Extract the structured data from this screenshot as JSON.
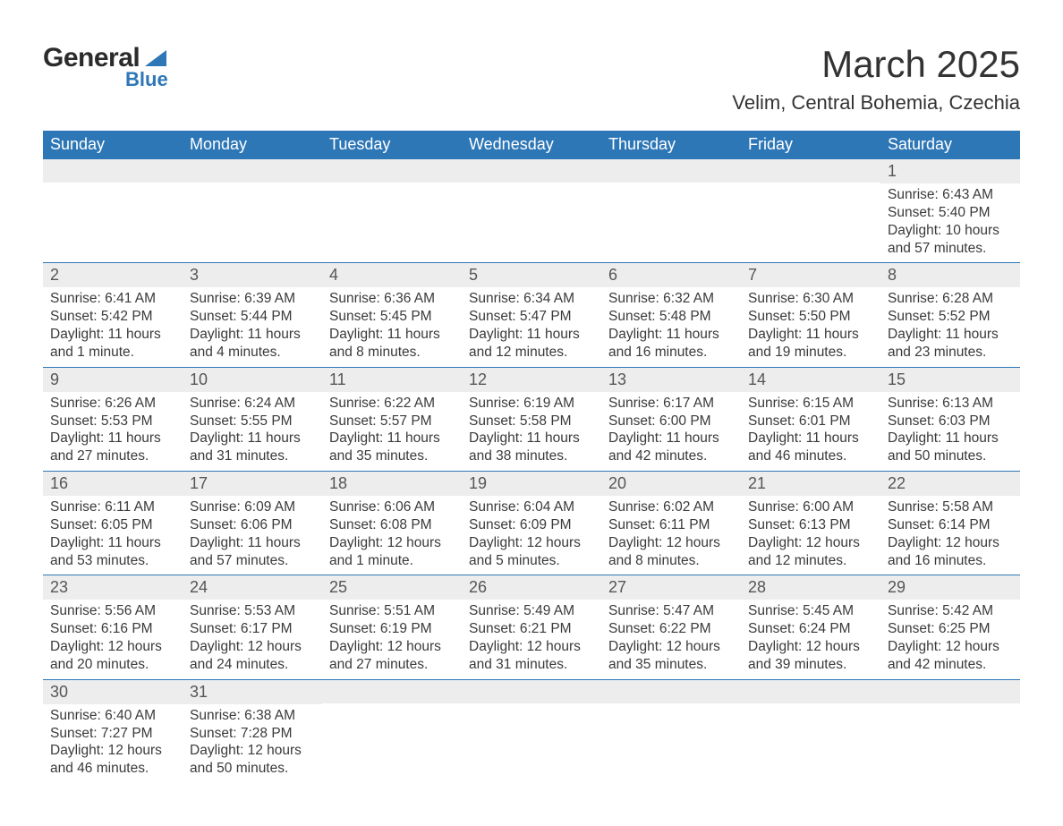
{
  "brand": {
    "top": "General",
    "bottom": "Blue",
    "tri_color": "#2e77b7"
  },
  "title": "March 2025",
  "subtitle": "Velim, Central Bohemia, Czechia",
  "colors": {
    "header_bg": "#2e77b7",
    "header_text": "#ffffff",
    "daynum_bg": "#ededed",
    "daynum_text": "#565656",
    "body_text": "#3a3a3a",
    "rule": "#2e77b7",
    "background": "#ffffff"
  },
  "typography": {
    "title_fontsize": 42,
    "subtitle_fontsize": 22,
    "header_fontsize": 18,
    "daynum_fontsize": 18,
    "body_fontsize": 15.5
  },
  "layout": {
    "columns": 7,
    "rows": 6,
    "first_weekday": "Sunday"
  },
  "weekdays": [
    "Sunday",
    "Monday",
    "Tuesday",
    "Wednesday",
    "Thursday",
    "Friday",
    "Saturday"
  ],
  "weeks": [
    [
      null,
      null,
      null,
      null,
      null,
      null,
      {
        "n": "1",
        "sunrise": "Sunrise: 6:43 AM",
        "sunset": "Sunset: 5:40 PM",
        "daylight1": "Daylight: 10 hours",
        "daylight2": "and 57 minutes."
      }
    ],
    [
      {
        "n": "2",
        "sunrise": "Sunrise: 6:41 AM",
        "sunset": "Sunset: 5:42 PM",
        "daylight1": "Daylight: 11 hours",
        "daylight2": "and 1 minute."
      },
      {
        "n": "3",
        "sunrise": "Sunrise: 6:39 AM",
        "sunset": "Sunset: 5:44 PM",
        "daylight1": "Daylight: 11 hours",
        "daylight2": "and 4 minutes."
      },
      {
        "n": "4",
        "sunrise": "Sunrise: 6:36 AM",
        "sunset": "Sunset: 5:45 PM",
        "daylight1": "Daylight: 11 hours",
        "daylight2": "and 8 minutes."
      },
      {
        "n": "5",
        "sunrise": "Sunrise: 6:34 AM",
        "sunset": "Sunset: 5:47 PM",
        "daylight1": "Daylight: 11 hours",
        "daylight2": "and 12 minutes."
      },
      {
        "n": "6",
        "sunrise": "Sunrise: 6:32 AM",
        "sunset": "Sunset: 5:48 PM",
        "daylight1": "Daylight: 11 hours",
        "daylight2": "and 16 minutes."
      },
      {
        "n": "7",
        "sunrise": "Sunrise: 6:30 AM",
        "sunset": "Sunset: 5:50 PM",
        "daylight1": "Daylight: 11 hours",
        "daylight2": "and 19 minutes."
      },
      {
        "n": "8",
        "sunrise": "Sunrise: 6:28 AM",
        "sunset": "Sunset: 5:52 PM",
        "daylight1": "Daylight: 11 hours",
        "daylight2": "and 23 minutes."
      }
    ],
    [
      {
        "n": "9",
        "sunrise": "Sunrise: 6:26 AM",
        "sunset": "Sunset: 5:53 PM",
        "daylight1": "Daylight: 11 hours",
        "daylight2": "and 27 minutes."
      },
      {
        "n": "10",
        "sunrise": "Sunrise: 6:24 AM",
        "sunset": "Sunset: 5:55 PM",
        "daylight1": "Daylight: 11 hours",
        "daylight2": "and 31 minutes."
      },
      {
        "n": "11",
        "sunrise": "Sunrise: 6:22 AM",
        "sunset": "Sunset: 5:57 PM",
        "daylight1": "Daylight: 11 hours",
        "daylight2": "and 35 minutes."
      },
      {
        "n": "12",
        "sunrise": "Sunrise: 6:19 AM",
        "sunset": "Sunset: 5:58 PM",
        "daylight1": "Daylight: 11 hours",
        "daylight2": "and 38 minutes."
      },
      {
        "n": "13",
        "sunrise": "Sunrise: 6:17 AM",
        "sunset": "Sunset: 6:00 PM",
        "daylight1": "Daylight: 11 hours",
        "daylight2": "and 42 minutes."
      },
      {
        "n": "14",
        "sunrise": "Sunrise: 6:15 AM",
        "sunset": "Sunset: 6:01 PM",
        "daylight1": "Daylight: 11 hours",
        "daylight2": "and 46 minutes."
      },
      {
        "n": "15",
        "sunrise": "Sunrise: 6:13 AM",
        "sunset": "Sunset: 6:03 PM",
        "daylight1": "Daylight: 11 hours",
        "daylight2": "and 50 minutes."
      }
    ],
    [
      {
        "n": "16",
        "sunrise": "Sunrise: 6:11 AM",
        "sunset": "Sunset: 6:05 PM",
        "daylight1": "Daylight: 11 hours",
        "daylight2": "and 53 minutes."
      },
      {
        "n": "17",
        "sunrise": "Sunrise: 6:09 AM",
        "sunset": "Sunset: 6:06 PM",
        "daylight1": "Daylight: 11 hours",
        "daylight2": "and 57 minutes."
      },
      {
        "n": "18",
        "sunrise": "Sunrise: 6:06 AM",
        "sunset": "Sunset: 6:08 PM",
        "daylight1": "Daylight: 12 hours",
        "daylight2": "and 1 minute."
      },
      {
        "n": "19",
        "sunrise": "Sunrise: 6:04 AM",
        "sunset": "Sunset: 6:09 PM",
        "daylight1": "Daylight: 12 hours",
        "daylight2": "and 5 minutes."
      },
      {
        "n": "20",
        "sunrise": "Sunrise: 6:02 AM",
        "sunset": "Sunset: 6:11 PM",
        "daylight1": "Daylight: 12 hours",
        "daylight2": "and 8 minutes."
      },
      {
        "n": "21",
        "sunrise": "Sunrise: 6:00 AM",
        "sunset": "Sunset: 6:13 PM",
        "daylight1": "Daylight: 12 hours",
        "daylight2": "and 12 minutes."
      },
      {
        "n": "22",
        "sunrise": "Sunrise: 5:58 AM",
        "sunset": "Sunset: 6:14 PM",
        "daylight1": "Daylight: 12 hours",
        "daylight2": "and 16 minutes."
      }
    ],
    [
      {
        "n": "23",
        "sunrise": "Sunrise: 5:56 AM",
        "sunset": "Sunset: 6:16 PM",
        "daylight1": "Daylight: 12 hours",
        "daylight2": "and 20 minutes."
      },
      {
        "n": "24",
        "sunrise": "Sunrise: 5:53 AM",
        "sunset": "Sunset: 6:17 PM",
        "daylight1": "Daylight: 12 hours",
        "daylight2": "and 24 minutes."
      },
      {
        "n": "25",
        "sunrise": "Sunrise: 5:51 AM",
        "sunset": "Sunset: 6:19 PM",
        "daylight1": "Daylight: 12 hours",
        "daylight2": "and 27 minutes."
      },
      {
        "n": "26",
        "sunrise": "Sunrise: 5:49 AM",
        "sunset": "Sunset: 6:21 PM",
        "daylight1": "Daylight: 12 hours",
        "daylight2": "and 31 minutes."
      },
      {
        "n": "27",
        "sunrise": "Sunrise: 5:47 AM",
        "sunset": "Sunset: 6:22 PM",
        "daylight1": "Daylight: 12 hours",
        "daylight2": "and 35 minutes."
      },
      {
        "n": "28",
        "sunrise": "Sunrise: 5:45 AM",
        "sunset": "Sunset: 6:24 PM",
        "daylight1": "Daylight: 12 hours",
        "daylight2": "and 39 minutes."
      },
      {
        "n": "29",
        "sunrise": "Sunrise: 5:42 AM",
        "sunset": "Sunset: 6:25 PM",
        "daylight1": "Daylight: 12 hours",
        "daylight2": "and 42 minutes."
      }
    ],
    [
      {
        "n": "30",
        "sunrise": "Sunrise: 6:40 AM",
        "sunset": "Sunset: 7:27 PM",
        "daylight1": "Daylight: 12 hours",
        "daylight2": "and 46 minutes."
      },
      {
        "n": "31",
        "sunrise": "Sunrise: 6:38 AM",
        "sunset": "Sunset: 7:28 PM",
        "daylight1": "Daylight: 12 hours",
        "daylight2": "and 50 minutes."
      },
      null,
      null,
      null,
      null,
      null
    ]
  ]
}
